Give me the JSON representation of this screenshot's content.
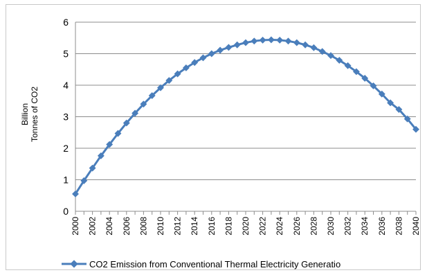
{
  "chart_data": {
    "type": "line",
    "title": "",
    "xlabel": "",
    "ylabel": "Billion\nTonnes of  CO2",
    "ylim": [
      0,
      6
    ],
    "yticks": [
      "0",
      "1",
      "2",
      "3",
      "4",
      "5",
      "6"
    ],
    "xticks": [
      "2000",
      "2002",
      "2004",
      "2006",
      "2008",
      "2010",
      "2012",
      "2014",
      "2016",
      "2018",
      "2020",
      "2022",
      "2024",
      "2026",
      "2028",
      "2030",
      "2032",
      "2034",
      "2036",
      "2038",
      "2040"
    ],
    "grid": "horizontal",
    "legend_position": "bottom",
    "series": [
      {
        "name": "CO2 Emission from Conventional Thermal Electricity Generatio",
        "color": "#4a7ebb",
        "marker": "diamond",
        "x": [
          2000,
          2001,
          2002,
          2003,
          2004,
          2005,
          2006,
          2007,
          2008,
          2009,
          2010,
          2011,
          2012,
          2013,
          2014,
          2015,
          2016,
          2017,
          2018,
          2019,
          2020,
          2021,
          2022,
          2023,
          2024,
          2025,
          2026,
          2027,
          2028,
          2029,
          2030,
          2031,
          2032,
          2033,
          2034,
          2035,
          2036,
          2037,
          2038,
          2039,
          2040
        ],
        "values": [
          0.55,
          0.97,
          1.37,
          1.76,
          2.12,
          2.47,
          2.8,
          3.11,
          3.4,
          3.67,
          3.92,
          4.15,
          4.36,
          4.55,
          4.72,
          4.87,
          5.0,
          5.11,
          5.2,
          5.28,
          5.35,
          5.4,
          5.43,
          5.44,
          5.43,
          5.4,
          5.35,
          5.28,
          5.19,
          5.07,
          4.94,
          4.79,
          4.62,
          4.43,
          4.22,
          3.98,
          3.72,
          3.44,
          3.23,
          2.93,
          2.6
        ]
      }
    ]
  }
}
